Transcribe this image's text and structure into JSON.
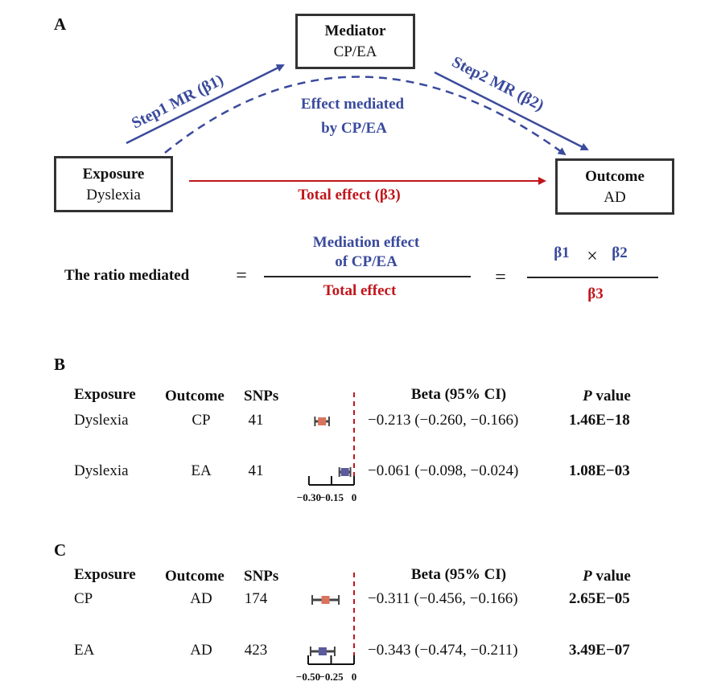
{
  "panel_a": {
    "label": "A",
    "mediator": {
      "title": "Mediator",
      "value": "CP/EA"
    },
    "exposure": {
      "title": "Exposure",
      "value": "Dyslexia"
    },
    "outcome": {
      "title": "Outcome",
      "value": "AD"
    },
    "step1": "Step1 MR (β1)",
    "step2": "Step2 MR (β2)",
    "mediated_line1": "Effect mediated",
    "mediated_line2": "by CP/EA",
    "total_effect": "Total effect (β3)",
    "ratio_label": "The ratio mediated",
    "eq1": "=",
    "eq2": "=",
    "num_line1": "Mediation effect",
    "num_line2": "of CP/EA",
    "denominator": "Total effect",
    "beta1": "β1",
    "times": "×",
    "beta2": "β2",
    "beta3": "β3",
    "colors": {
      "blue": "#3a4a9c",
      "red": "#c0161c"
    }
  },
  "chart_data": [
    {
      "type": "forest",
      "panel": "B",
      "headers": {
        "exposure": "Exposure",
        "outcome": "Outcome",
        "snps": "SNPs",
        "beta": "Beta (95% CI)",
        "p": "P value"
      },
      "rows": [
        {
          "exposure": "Dyslexia",
          "outcome": "CP",
          "snps": "41",
          "beta": -0.213,
          "lo": -0.26,
          "hi": -0.166,
          "ci_text": "−0.213 (−0.260, −0.166)",
          "p": "1.46E−18",
          "color": "#d9735e"
        },
        {
          "exposure": "Dyslexia",
          "outcome": "EA",
          "snps": "41",
          "beta": -0.061,
          "lo": -0.098,
          "hi": -0.024,
          "ci_text": "−0.061 (−0.098, −0.024)",
          "p": "1.08E−03",
          "color": "#5a5a9c"
        }
      ],
      "xlim": [
        -0.3,
        0
      ],
      "ticks": [
        "−0.30",
        "−0.15",
        "0"
      ],
      "tick_values": [
        -0.3,
        -0.15,
        0
      ]
    },
    {
      "type": "forest",
      "panel": "C",
      "headers": {
        "exposure": "Exposure",
        "outcome": "Outcome",
        "snps": "SNPs",
        "beta": "Beta (95% CI)",
        "p": "P value"
      },
      "rows": [
        {
          "exposure": "CP",
          "outcome": "AD",
          "snps": "174",
          "beta": -0.311,
          "lo": -0.456,
          "hi": -0.166,
          "ci_text": "−0.311 (−0.456, −0.166)",
          "p": "2.65E−05",
          "color": "#d9735e"
        },
        {
          "exposure": "EA",
          "outcome": "AD",
          "snps": "423",
          "beta": -0.343,
          "lo": -0.474,
          "hi": -0.211,
          "ci_text": "−0.343 (−0.474, −0.211)",
          "p": "3.49E−07",
          "color": "#5a5a9c"
        }
      ],
      "xlim": [
        -0.5,
        0
      ],
      "ticks": [
        "−0.50",
        "−0.25",
        "0"
      ],
      "tick_values": [
        -0.5,
        -0.25,
        0
      ]
    }
  ]
}
